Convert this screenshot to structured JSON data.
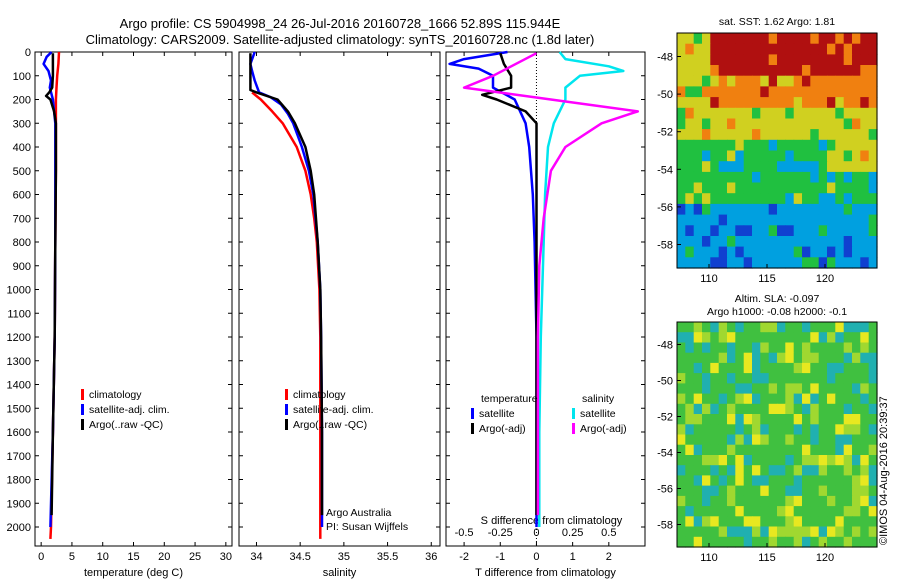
{
  "title_line1": "Argo profile: CS 5904998_24 26-Jul-2016 20160728_1666 52.89S 115.944E",
  "title_line2": "Climatology: CARS2009. Satellite-adjusted climatology: synTS_20160728.nc (1.8d later)",
  "watermark": "©IMOS 04-Aug-2016 20:39:37",
  "colors": {
    "climatology": "#ff0000",
    "satellite": "#0000ff",
    "argo": "#000000",
    "sal_satellite": "#00e5ee",
    "sal_argo": "#ff00ff"
  },
  "chart_data": [
    {
      "type": "line",
      "panel": "temperature",
      "xlabel": "temperature (deg C)",
      "ylabel": "",
      "xlim": [
        -1,
        31
      ],
      "ylim": [
        2080,
        0
      ],
      "y_reversed": true,
      "xticks": [
        0,
        5,
        10,
        15,
        20,
        25,
        30
      ],
      "yticks": [
        0,
        100,
        200,
        300,
        400,
        500,
        600,
        700,
        800,
        900,
        1000,
        1100,
        1200,
        1300,
        1400,
        1500,
        1600,
        1700,
        1800,
        1900,
        2000
      ],
      "legend": [
        "climatology",
        "satellite-adj. clim.",
        "Argo(..raw -QC)"
      ],
      "series": [
        {
          "name": "climatology",
          "color": "#ff0000",
          "depth": [
            0,
            50,
            100,
            150,
            200,
            300,
            500,
            800,
            1200,
            1600,
            2000,
            2050
          ],
          "values": [
            2.9,
            2.8,
            2.6,
            2.5,
            2.4,
            2.4,
            2.4,
            2.3,
            2.2,
            1.9,
            1.6,
            1.5
          ]
        },
        {
          "name": "satellite-adj. clim.",
          "color": "#0000ff",
          "depth": [
            0,
            20,
            50,
            80,
            120,
            150,
            200,
            300,
            500,
            800,
            1200,
            1600,
            2000
          ],
          "values": [
            1.7,
            0.9,
            0.4,
            1.2,
            1.6,
            1.4,
            1.9,
            2.3,
            2.3,
            2.3,
            2.2,
            1.9,
            1.5
          ]
        },
        {
          "name": "Argo(..raw -QC)",
          "color": "#000000",
          "depth": [
            5,
            50,
            100,
            150,
            170,
            185,
            200,
            250,
            300,
            500,
            800,
            1200,
            1600,
            1950
          ],
          "values": [
            1.9,
            1.9,
            1.9,
            1.8,
            1.3,
            0.8,
            1.5,
            2.1,
            2.4,
            2.4,
            2.3,
            2.2,
            1.9,
            1.7
          ]
        }
      ]
    },
    {
      "type": "line",
      "panel": "salinity",
      "xlabel": "salinity",
      "ylabel": "",
      "xlim": [
        33.8,
        36.1
      ],
      "ylim": [
        2080,
        0
      ],
      "y_reversed": true,
      "xticks": [
        34,
        34.5,
        35,
        35.5,
        36
      ],
      "legend": [
        "climatology",
        "satellite-adj. clim.",
        "Argo(..raw -QC)"
      ],
      "annotation": [
        "Argo Australia",
        "PI: Susan Wijffels"
      ],
      "series": [
        {
          "name": "climatology",
          "color": "#ff0000",
          "depth": [
            170,
            200,
            250,
            300,
            400,
            500,
            600,
            700,
            800,
            1000,
            1200,
            2050
          ],
          "values": [
            33.95,
            34.05,
            34.18,
            34.3,
            34.46,
            34.56,
            34.62,
            34.66,
            34.69,
            34.72,
            34.73,
            34.73
          ]
        },
        {
          "name": "satellite-adj. clim.",
          "color": "#0000ff",
          "depth": [
            0,
            50,
            80,
            120,
            170,
            190,
            220,
            260,
            300,
            400,
            500,
            600,
            800,
            1000,
            1200,
            1600,
            2000
          ],
          "values": [
            33.98,
            33.93,
            33.95,
            33.98,
            34.03,
            34.16,
            34.28,
            34.36,
            34.42,
            34.52,
            34.6,
            34.65,
            34.7,
            34.73,
            34.74,
            34.75,
            34.75
          ]
        },
        {
          "name": "Argo(..raw -QC)",
          "color": "#000000",
          "depth": [
            5,
            100,
            160,
            170,
            200,
            250,
            300,
            400,
            500,
            600,
            800,
            1000,
            1200,
            1600,
            1950
          ],
          "values": [
            33.93,
            33.93,
            33.93,
            34.0,
            34.24,
            34.36,
            34.44,
            34.56,
            34.62,
            34.66,
            34.7,
            34.73,
            34.74,
            34.75,
            34.75
          ]
        }
      ]
    },
    {
      "type": "line",
      "panel": "difference from climatology",
      "xlabel": "T difference from climatology",
      "xlabel_top": "S difference from climatology",
      "xlim": [
        -2.5,
        3
      ],
      "ylim": [
        2080,
        0
      ],
      "y_reversed": true,
      "xticks": [
        -2,
        -1,
        0,
        1,
        2
      ],
      "xticks_top": [
        -0.5,
        -0.25,
        0,
        0.25,
        0.5
      ],
      "xticks_top_labels": [
        "-0.5",
        "-0.25",
        "0",
        "0.25",
        "0.5"
      ],
      "legend_groups": [
        {
          "title": "temperature",
          "items": [
            "satellite",
            "Argo(-adj)"
          ]
        },
        {
          "title": "salinity",
          "items": [
            "satellite",
            "Argo(-adj)"
          ]
        }
      ],
      "series": [
        {
          "name": "temperature satellite",
          "color": "#0000ff",
          "depth": [
            0,
            30,
            50,
            70,
            100,
            150,
            200,
            300,
            400,
            600,
            800,
            1200,
            1600,
            2000
          ],
          "values": [
            -0.8,
            -2.0,
            -2.4,
            -1.6,
            -1.2,
            -1.2,
            -0.6,
            -0.3,
            -0.2,
            -0.1,
            -0.05,
            0,
            0,
            0
          ]
        },
        {
          "name": "temperature Argo(-adj)",
          "color": "#000000",
          "depth": [
            5,
            50,
            100,
            150,
            180,
            200,
            250,
            300,
            400,
            600,
            800,
            1200,
            1600,
            1950
          ],
          "values": [
            -1.0,
            -0.9,
            -0.7,
            -0.7,
            -1.5,
            -1.1,
            -0.3,
            0,
            0,
            0,
            0,
            0,
            0,
            0
          ]
        },
        {
          "name": "salinity satellite",
          "color": "#00e5ee",
          "depth": [
            0,
            30,
            60,
            80,
            100,
            150,
            200,
            300,
            400,
            600,
            800,
            1200,
            1600,
            2000
          ],
          "values": [
            0.16,
            0.2,
            0.5,
            0.6,
            0.3,
            0.2,
            0.2,
            0.12,
            0.08,
            0.06,
            0.05,
            0.03,
            0.02,
            0.02
          ]
        },
        {
          "name": "salinity Argo(-adj)",
          "color": "#ff00ff",
          "depth": [
            5,
            100,
            150,
            200,
            250,
            300,
            400,
            500,
            700,
            900,
            1200,
            1600,
            1950
          ],
          "values": [
            0.0,
            -0.3,
            -0.5,
            0.1,
            0.7,
            0.45,
            0.2,
            0.1,
            0.05,
            0.02,
            0.01,
            0.01,
            0.01
          ]
        }
      ]
    }
  ],
  "map_sst": {
    "title": "sat. SST: 1.62 Argo: 1.81",
    "xticks": [
      "110",
      "115",
      "120"
    ],
    "yticks": [
      "-48",
      "-50",
      "-52",
      "-54",
      "-56",
      "-58"
    ]
  },
  "map_sla": {
    "title_line1": "Altim. SLA: -0.097",
    "title_line2": "Argo h1000: -0.08 h2000: -0.1",
    "xticks": [
      "110",
      "115",
      "120"
    ],
    "yticks": [
      "-48",
      "-50",
      "-52",
      "-54",
      "-56",
      "-58"
    ]
  }
}
